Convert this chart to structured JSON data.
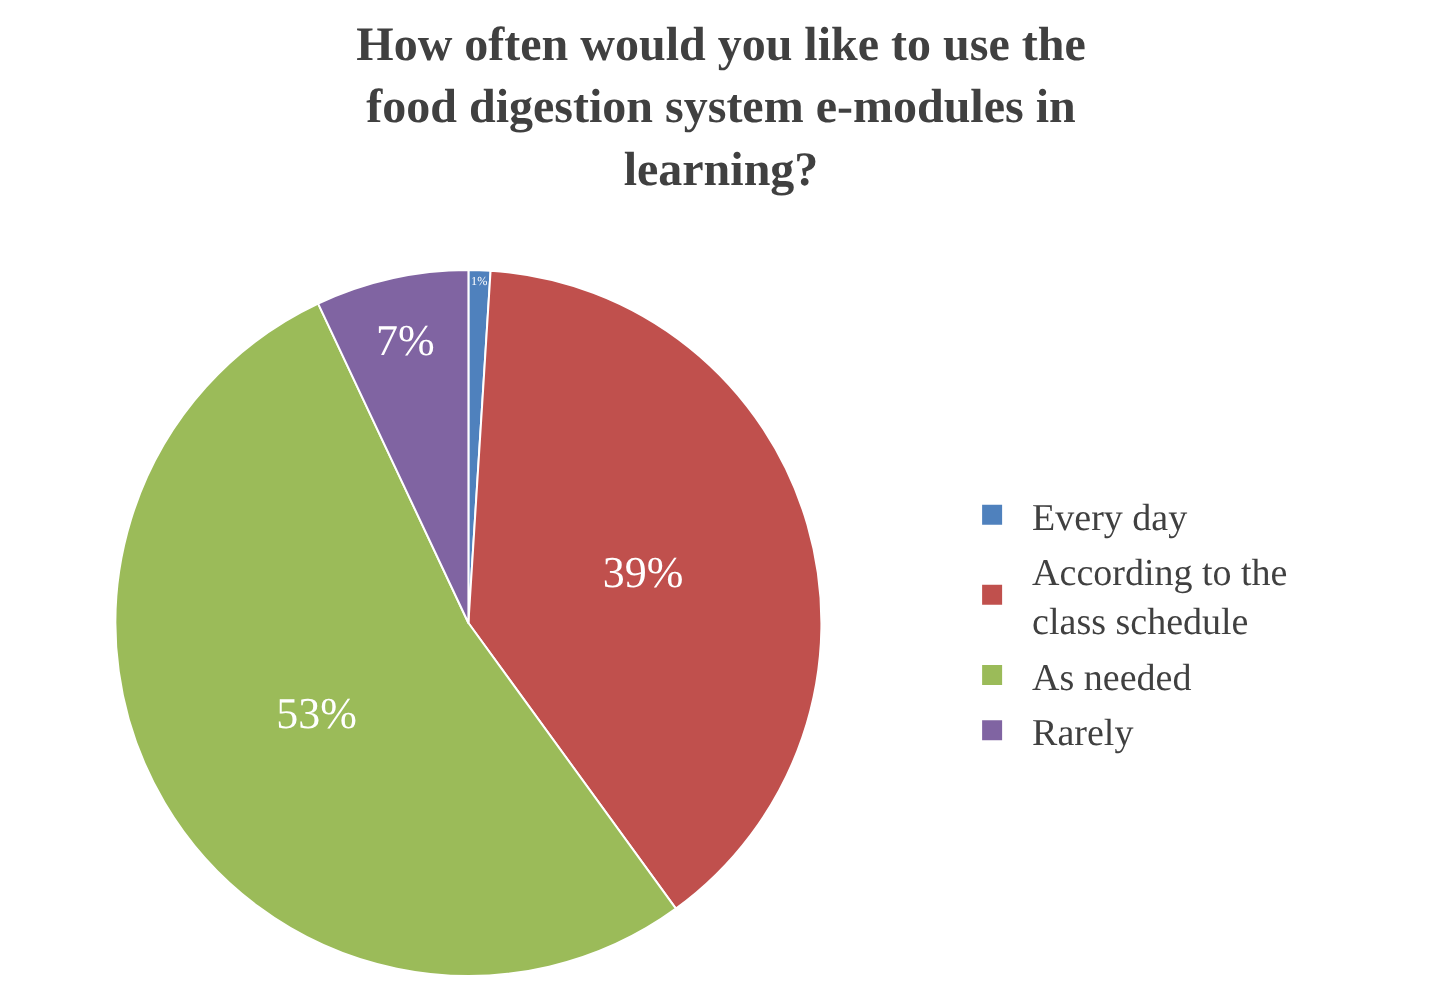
{
  "chart_data": {
    "type": "pie",
    "title": "How often would you like to use the food digestion system e-modules in learning?",
    "categories": [
      "Every day",
      "According to the class schedule",
      "As needed",
      "Rarely"
    ],
    "values": [
      1,
      39,
      53,
      7
    ],
    "value_labels": [
      "1%",
      "39%",
      "53%",
      "7%"
    ],
    "colors": [
      "#4f81bd",
      "#c0504d",
      "#9bbb59",
      "#8064a2"
    ],
    "legend": "right"
  }
}
